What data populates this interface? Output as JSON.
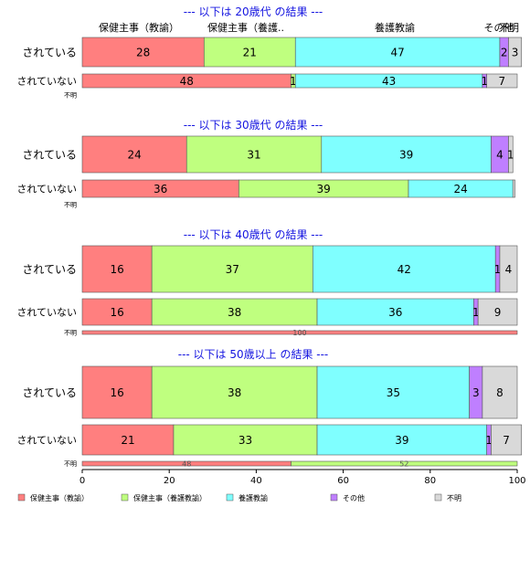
{
  "chart_data": {
    "type": "bar",
    "orientation": "horizontal",
    "stacked": true,
    "xlim": [
      0,
      100
    ],
    "x_ticks": [
      "0",
      "20",
      "40",
      "60",
      "80",
      "100"
    ],
    "series": [
      {
        "name": "保健主事（教諭）",
        "color": "#FF7F7F"
      },
      {
        "name": "保健主事（養護教諭）",
        "color": "#BFFF7F"
      },
      {
        "name": "養護教諭",
        "color": "#7FFFFF"
      },
      {
        "name": "その他",
        "color": "#BF7FFF"
      },
      {
        "name": "不明",
        "color": "#D9D9D9"
      }
    ],
    "top_header_labels": [
      "保健主事（教諭）",
      "保健主事（養護..",
      "養護教諭",
      "その他",
      "不明"
    ],
    "panels": [
      {
        "title": "--- 以下は 20歳代 の結果 ---",
        "rows": [
          {
            "label": "されている",
            "values": [
              28,
              21,
              47,
              2,
              3
            ],
            "value_labels": [
              "28",
              "21",
              "47",
              "2",
              "3"
            ]
          },
          {
            "label": "されていない",
            "values": [
              48,
              1,
              43,
              1,
              7
            ],
            "value_labels": [
              "48",
              "1",
              "43",
              "1",
              "7"
            ]
          },
          {
            "label": "不明",
            "values": [],
            "value_labels": []
          }
        ]
      },
      {
        "title": "--- 以下は 30歳代 の結果 ---",
        "rows": [
          {
            "label": "されている",
            "values": [
              24,
              31,
              39,
              4,
              1
            ],
            "value_labels": [
              "24",
              "31",
              "39",
              "4",
              "1"
            ]
          },
          {
            "label": "されていない",
            "values": [
              36,
              39,
              24,
              0,
              0.5
            ],
            "value_labels": [
              "36",
              "39",
              "24",
              "",
              ""
            ]
          },
          {
            "label": "不明",
            "values": [],
            "value_labels": []
          }
        ]
      },
      {
        "title": "--- 以下は 40歳代 の結果 ---",
        "rows": [
          {
            "label": "されている",
            "values": [
              16,
              37,
              42,
              1,
              4
            ],
            "value_labels": [
              "16",
              "37",
              "42",
              "1",
              "4"
            ]
          },
          {
            "label": "されていない",
            "values": [
              16,
              38,
              36,
              1,
              9
            ],
            "value_labels": [
              "16",
              "38",
              "36",
              "1",
              "9"
            ]
          },
          {
            "label": "不明",
            "values": [
              100,
              0,
              0,
              0,
              0
            ],
            "value_labels": [
              "100",
              "",
              "",
              "",
              ""
            ]
          }
        ]
      },
      {
        "title": "--- 以下は 50歳以上 の結果 ---",
        "rows": [
          {
            "label": "されている",
            "values": [
              16,
              38,
              35,
              3,
              8
            ],
            "value_labels": [
              "16",
              "38",
              "35",
              "3",
              "8"
            ]
          },
          {
            "label": "されていない",
            "values": [
              21,
              33,
              39,
              1,
              7
            ],
            "value_labels": [
              "21",
              "33",
              "39",
              "1",
              "7"
            ]
          },
          {
            "label": "不明",
            "values": [
              48,
              52,
              0,
              0,
              0
            ],
            "value_labels": [
              "48",
              "52",
              "",
              "",
              ""
            ]
          }
        ]
      }
    ]
  }
}
